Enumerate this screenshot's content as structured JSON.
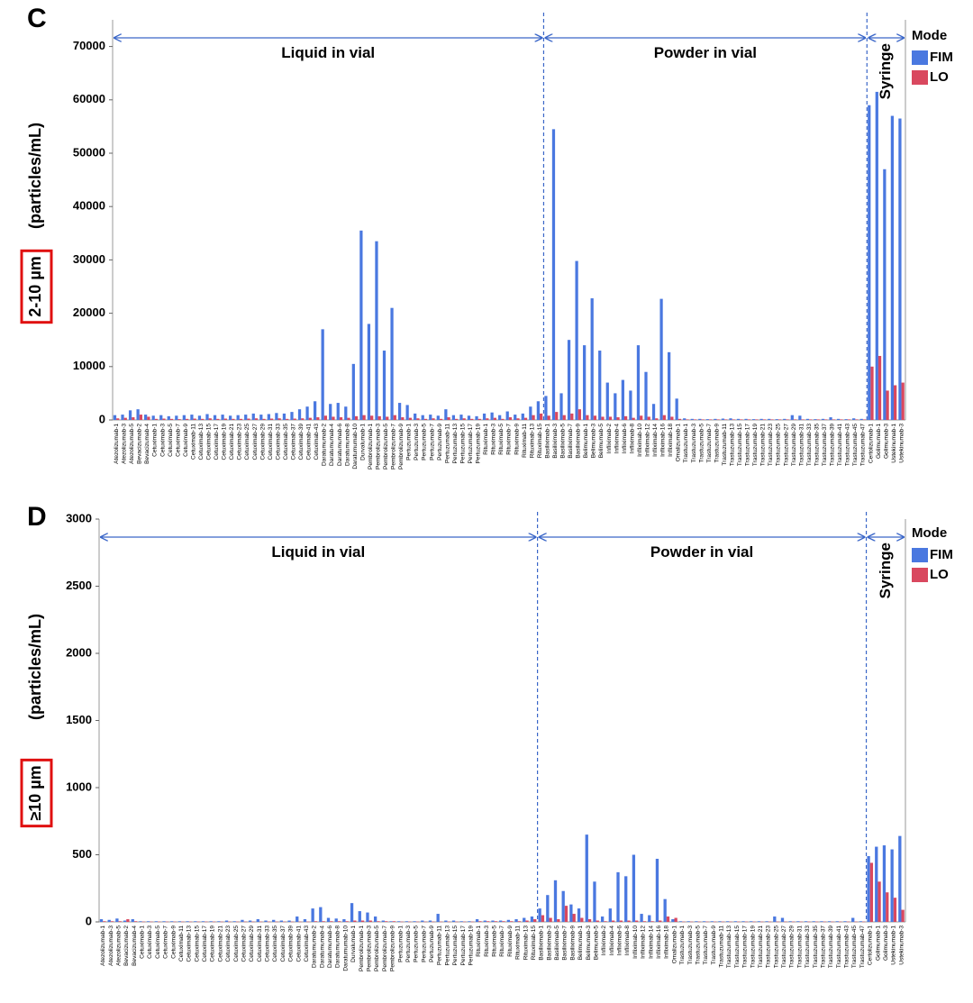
{
  "charts": [
    {
      "panel": "C",
      "chart_data": {
        "type": "bar",
        "y_label_box": "2-10 µm",
        "y_label": "(particles/mL)",
        "legend_title": "Mode",
        "categories": [
          "Atezolizumab-1",
          "Atezolizumab-3",
          "Atezolizumab-5",
          "Bevacizumab-2",
          "Bevacizumab-4",
          "Cetuximab-1",
          "Cetuximab-3",
          "Cetuximab-5",
          "Cetuximab-7",
          "Cetuximab-9",
          "Cetuximab-11",
          "Cetuximab-13",
          "Cetuximab-15",
          "Cetuximab-17",
          "Cetuximab-19",
          "Cetuximab-21",
          "Cetuximab-23",
          "Cetuximab-25",
          "Cetuximab-27",
          "Cetuximab-29",
          "Cetuximab-31",
          "Cetuximab-33",
          "Cetuximab-35",
          "Cetuximab-37",
          "Cetuximab-39",
          "Cetuximab-41",
          "Cetuximab-43",
          "Daratumumab-2",
          "Daratumumab-4",
          "Daratumumab-6",
          "Daratumumab-8",
          "Daratumumab-10",
          "Durvalumab-1",
          "Pembrolizumab-1",
          "Pembrolizumab-3",
          "Pembrolizumab-5",
          "Pembrolizumab-7",
          "Pembrolizumab-9",
          "Pertuzumab-1",
          "Pertuzumab-3",
          "Pertuzumab-5",
          "Pertuzumab-7",
          "Pertuzumab-9",
          "Pertuzumab-11",
          "Pertuzumab-13",
          "Pertuzumab-15",
          "Pertuzumab-17",
          "Pertuzumab-19",
          "Rituximab-1",
          "Rituximab-3",
          "Rituximab-5",
          "Rituximab-7",
          "Rituximab-9",
          "Rituximab-11",
          "Rituximab-13",
          "Rituximab-15",
          "Basiliximab-1",
          "Basiliximab-3",
          "Basiliximab-5",
          "Basiliximab-7",
          "Basiliximab-9",
          "Belimumab-1",
          "Belimumab-3",
          "Belimumab-5",
          "Infliximab-2",
          "Infliximab-4",
          "Infliximab-6",
          "Infliximab-8",
          "Infliximab-10",
          "Infliximab-12",
          "Infliximab-14",
          "Infliximab-16",
          "Infliximab-18",
          "Omalizumab-1",
          "Trastuzumab-1",
          "Trastuzumab-3",
          "Trastuzumab-5",
          "Trastuzumab-7",
          "Trastuzumab-9",
          "Trastuzumab-11",
          "Trastuzumab-13",
          "Trastuzumab-15",
          "Trastuzumab-17",
          "Trastuzumab-19",
          "Trastuzumab-21",
          "Trastuzumab-23",
          "Trastuzumab-25",
          "Trastuzumab-27",
          "Trastuzumab-29",
          "Trastuzumab-31",
          "Trastuzumab-33",
          "Trastuzumab-35",
          "Trastuzumab-37",
          "Trastuzumab-39",
          "Trastuzumab-41",
          "Trastuzumab-43",
          "Trastuzumab-45",
          "Trastuzumab-47",
          "Certolizumab-1",
          "Golimumab-1",
          "Golimumab-3",
          "Ustekinumab-1",
          "Ustekinumab-3"
        ],
        "series": [
          {
            "name": "FIM",
            "color": "#4a78e0",
            "values": [
              900,
              1000,
              1800,
              2000,
              1000,
              800,
              900,
              700,
              800,
              900,
              1000,
              800,
              1100,
              900,
              1000,
              800,
              900,
              1000,
              1200,
              1000,
              1100,
              1300,
              1200,
              1500,
              2000,
              2500,
              3500,
              17000,
              3000,
              3200,
              2500,
              10500,
              35500,
              18000,
              33500,
              13000,
              21000,
              3200,
              2800,
              1200,
              900,
              1000,
              800,
              2000,
              900,
              1000,
              800,
              700,
              1200,
              1400,
              900,
              1600,
              1000,
              1200,
              2500,
              3500,
              4500,
              54500,
              5000,
              15000,
              29800,
              14000,
              22800,
              13000,
              7000,
              5000,
              7500,
              5500,
              14000,
              9000,
              3000,
              22700,
              12700,
              4000,
              300,
              200,
              200,
              150,
              200,
              250,
              300,
              200,
              200,
              150,
              200,
              200,
              150,
              200,
              900,
              800,
              200,
              150,
              200,
              500,
              200,
              150,
              300,
              200,
              59000,
              61500,
              47000,
              57000,
              56500
            ]
          },
          {
            "name": "LO",
            "color": "#d9485f",
            "values": [
              300,
              400,
              500,
              1000,
              600,
              200,
              250,
              200,
              150,
              200,
              250,
              200,
              300,
              200,
              250,
              200,
              200,
              250,
              300,
              200,
              250,
              300,
              200,
              250,
              300,
              400,
              500,
              800,
              600,
              500,
              400,
              700,
              900,
              800,
              700,
              600,
              900,
              500,
              400,
              300,
              200,
              300,
              200,
              500,
              200,
              300,
              200,
              200,
              300,
              400,
              200,
              500,
              300,
              400,
              900,
              1200,
              800,
              1500,
              900,
              1200,
              2000,
              900,
              800,
              600,
              600,
              500,
              700,
              400,
              800,
              600,
              300,
              900,
              600,
              200,
              100,
              100,
              100,
              100,
              100,
              100,
              100,
              100,
              100,
              100,
              100,
              100,
              100,
              100,
              100,
              100,
              100,
              100,
              100,
              100,
              100,
              100,
              100,
              100,
              10000,
              12000,
              5500,
              6500,
              7000
            ]
          }
        ],
        "regions": [
          {
            "label": "Liquid in vial",
            "from": "Atezolizumab-1",
            "to": "Rituximab-15"
          },
          {
            "label": "Powder in vial",
            "from": "Basiliximab-1",
            "to": "Trastuzumab-47"
          },
          {
            "label": "Syringe",
            "from": "Certolizumab-1",
            "to": "Ustekinumab-3"
          }
        ],
        "ylim": [
          0,
          75000
        ],
        "yticks": [
          0,
          10000,
          20000,
          30000,
          40000,
          50000,
          60000,
          70000
        ]
      }
    },
    {
      "panel": "D",
      "chart_data": {
        "type": "bar",
        "y_label_box": "≥10 µm",
        "y_label": "(particles/mL)",
        "legend_title": "Mode",
        "categories": [
          "Atezolizumab-1",
          "Atezolizumab-3",
          "Atezolizumab-5",
          "Bevacizumab-2",
          "Bevacizumab-4",
          "Cetuximab-1",
          "Cetuximab-3",
          "Cetuximab-5",
          "Cetuximab-7",
          "Cetuximab-9",
          "Cetuximab-11",
          "Cetuximab-13",
          "Cetuximab-15",
          "Cetuximab-17",
          "Cetuximab-19",
          "Cetuximab-21",
          "Cetuximab-23",
          "Cetuximab-25",
          "Cetuximab-27",
          "Cetuximab-29",
          "Cetuximab-31",
          "Cetuximab-33",
          "Cetuximab-35",
          "Cetuximab-37",
          "Cetuximab-39",
          "Cetuximab-41",
          "Cetuximab-43",
          "Daratumumab-2",
          "Daratumumab-4",
          "Daratumumab-6",
          "Daratumumab-8",
          "Daratumumab-10",
          "Durvalumab-1",
          "Pembrolizumab-1",
          "Pembrolizumab-3",
          "Pembrolizumab-5",
          "Pembrolizumab-7",
          "Pembrolizumab-9",
          "Pertuzumab-1",
          "Pertuzumab-3",
          "Pertuzumab-5",
          "Pertuzumab-7",
          "Pertuzumab-9",
          "Pertuzumab-11",
          "Pertuzumab-13",
          "Pertuzumab-15",
          "Pertuzumab-17",
          "Pertuzumab-19",
          "Rituximab-1",
          "Rituximab-3",
          "Rituximab-5",
          "Rituximab-7",
          "Rituximab-9",
          "Rituximab-11",
          "Rituximab-13",
          "Rituximab-15",
          "Basiliximab-1",
          "Basiliximab-3",
          "Basiliximab-5",
          "Basiliximab-7",
          "Basiliximab-9",
          "Belimumab-1",
          "Belimumab-3",
          "Belimumab-5",
          "Infliximab-2",
          "Infliximab-4",
          "Infliximab-6",
          "Infliximab-8",
          "Infliximab-10",
          "Infliximab-12",
          "Infliximab-14",
          "Infliximab-16",
          "Infliximab-18",
          "Omalizumab-1",
          "Trastuzumab-1",
          "Trastuzumab-3",
          "Trastuzumab-5",
          "Trastuzumab-7",
          "Trastuzumab-9",
          "Trastuzumab-11",
          "Trastuzumab-13",
          "Trastuzumab-15",
          "Trastuzumab-17",
          "Trastuzumab-19",
          "Trastuzumab-21",
          "Trastuzumab-23",
          "Trastuzumab-25",
          "Trastuzumab-27",
          "Trastuzumab-29",
          "Trastuzumab-31",
          "Trastuzumab-33",
          "Trastuzumab-35",
          "Trastuzumab-37",
          "Trastuzumab-39",
          "Trastuzumab-41",
          "Trastuzumab-43",
          "Trastuzumab-45",
          "Trastuzumab-47",
          "Certolizumab-1",
          "Golimumab-1",
          "Golimumab-3",
          "Ustekinumab-1",
          "Ustekinumab-3"
        ],
        "series": [
          {
            "name": "FIM",
            "color": "#4a78e0",
            "values": [
              20,
              15,
              25,
              10,
              20,
              5,
              5,
              5,
              5,
              5,
              5,
              5,
              5,
              5,
              5,
              5,
              10,
              5,
              15,
              10,
              20,
              10,
              15,
              10,
              10,
              40,
              20,
              100,
              110,
              30,
              25,
              20,
              140,
              80,
              70,
              40,
              10,
              5,
              5,
              5,
              5,
              10,
              10,
              60,
              10,
              10,
              5,
              5,
              20,
              10,
              10,
              10,
              15,
              20,
              30,
              40,
              100,
              200,
              310,
              230,
              130,
              100,
              650,
              300,
              40,
              100,
              370,
              340,
              500,
              60,
              50,
              470,
              170,
              20,
              5,
              5,
              5,
              5,
              5,
              5,
              5,
              5,
              5,
              5,
              5,
              5,
              40,
              30,
              5,
              5,
              5,
              5,
              5,
              5,
              5,
              5,
              30,
              5,
              490,
              560,
              570,
              540,
              640
            ]
          },
          {
            "name": "LO",
            "color": "#d9485f",
            "values": [
              5,
              5,
              5,
              20,
              5,
              2,
              2,
              2,
              2,
              2,
              2,
              2,
              2,
              2,
              2,
              2,
              2,
              2,
              2,
              2,
              2,
              2,
              2,
              2,
              2,
              2,
              2,
              5,
              5,
              5,
              5,
              5,
              10,
              10,
              10,
              5,
              5,
              5,
              2,
              2,
              2,
              2,
              2,
              2,
              2,
              2,
              2,
              2,
              5,
              5,
              5,
              5,
              5,
              5,
              10,
              20,
              50,
              30,
              20,
              120,
              60,
              30,
              20,
              10,
              5,
              10,
              10,
              10,
              10,
              5,
              5,
              10,
              40,
              30,
              2,
              2,
              2,
              2,
              2,
              2,
              2,
              2,
              2,
              2,
              2,
              2,
              2,
              2,
              2,
              2,
              2,
              2,
              2,
              2,
              2,
              2,
              2,
              2,
              440,
              300,
              220,
              180,
              90
            ]
          }
        ],
        "regions": [
          {
            "label": "Liquid in vial",
            "from": "Atezolizumab-1",
            "to": "Rituximab-15"
          },
          {
            "label": "Powder in vial",
            "from": "Basiliximab-1",
            "to": "Trastuzumab-47"
          },
          {
            "label": "Syringe",
            "from": "Certolizumab-1",
            "to": "Ustekinumab-3"
          }
        ],
        "ylim": [
          0,
          3000
        ],
        "yticks": [
          0,
          500,
          1000,
          1500,
          2000,
          2500,
          3000
        ]
      }
    }
  ]
}
